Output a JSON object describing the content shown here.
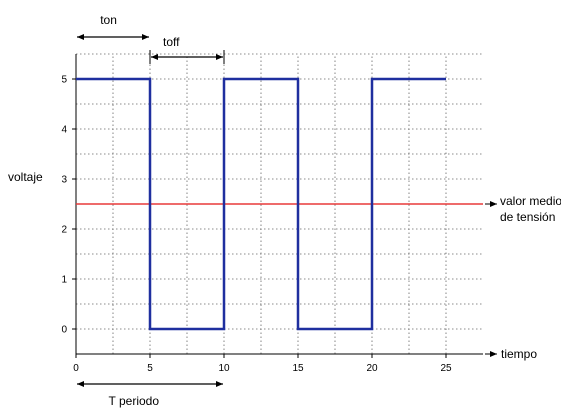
{
  "chart_data": {
    "type": "line",
    "x": [
      0,
      5,
      5,
      10,
      10,
      15,
      15,
      20,
      20,
      25
    ],
    "series": [
      {
        "values": [
          5,
          5,
          0,
          0,
          5,
          5,
          0,
          0,
          5,
          5
        ],
        "color": "#1f2f9f"
      }
    ],
    "reference_line": {
      "y": 2.5,
      "label": "valor medio\nde tensión",
      "color": "#e83a3a"
    },
    "xlabel": "tiempo",
    "ylabel": "voltaje",
    "xticks": [
      0,
      5,
      10,
      15,
      20,
      25
    ],
    "yticks": [
      0,
      1,
      2,
      3,
      4,
      5
    ],
    "xlim": [
      0,
      27.5
    ],
    "ylim": [
      -0.5,
      5.5
    ],
    "grid": true,
    "annotations": {
      "ton": {
        "label": "ton",
        "x": [
          0,
          5
        ]
      },
      "toff": {
        "label": "toff",
        "x": [
          5,
          10
        ]
      },
      "period": {
        "label": "T periodo",
        "x": [
          0,
          10
        ]
      }
    }
  }
}
